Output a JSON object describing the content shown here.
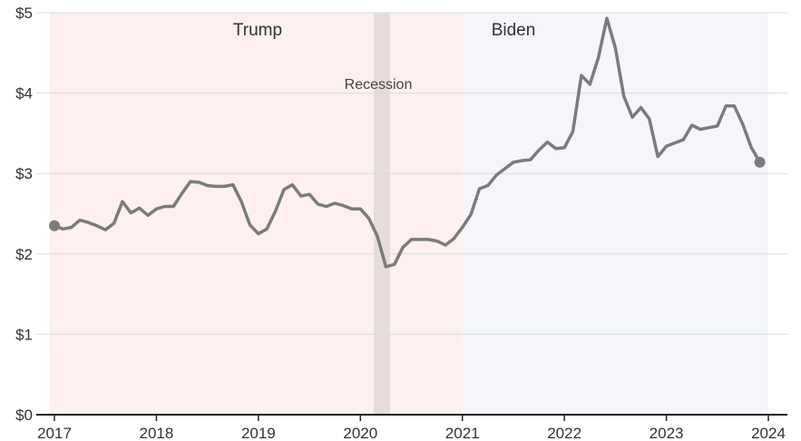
{
  "chart_data": {
    "type": "line",
    "title": "",
    "xlabel": "",
    "ylabel": "",
    "x_ticks": [
      "2017",
      "2018",
      "2019",
      "2020",
      "2021",
      "2022",
      "2023",
      "2024"
    ],
    "y_ticks": [
      "$0",
      "$1",
      "$2",
      "$3",
      "$4",
      "$5"
    ],
    "ylim": [
      0,
      5
    ],
    "xlim": [
      "2017-01",
      "2024-01"
    ],
    "grid": "horizontal",
    "periods": [
      {
        "label": "Trump",
        "start": "2017-01",
        "end": "2021-01",
        "color": "#fdf0ef"
      },
      {
        "label": "Recession",
        "start": "2020-02",
        "end": "2020-04",
        "color": "#e6dcdc"
      },
      {
        "label": "Biden",
        "start": "2021-01",
        "end": "2023-12",
        "color": "#f4f6fb"
      }
    ],
    "series": [
      {
        "color": "#7b7b7b",
        "x": [
          "2017-01",
          "2017-02",
          "2017-03",
          "2017-04",
          "2017-05",
          "2017-06",
          "2017-07",
          "2017-08",
          "2017-09",
          "2017-10",
          "2017-11",
          "2017-12",
          "2018-01",
          "2018-02",
          "2018-03",
          "2018-04",
          "2018-05",
          "2018-06",
          "2018-07",
          "2018-08",
          "2018-09",
          "2018-10",
          "2018-11",
          "2018-12",
          "2019-01",
          "2019-02",
          "2019-03",
          "2019-04",
          "2019-05",
          "2019-06",
          "2019-07",
          "2019-08",
          "2019-09",
          "2019-10",
          "2019-11",
          "2019-12",
          "2020-01",
          "2020-02",
          "2020-03",
          "2020-04",
          "2020-05",
          "2020-06",
          "2020-07",
          "2020-08",
          "2020-09",
          "2020-10",
          "2020-11",
          "2020-12",
          "2021-01",
          "2021-02",
          "2021-03",
          "2021-04",
          "2021-05",
          "2021-06",
          "2021-07",
          "2021-08",
          "2021-09",
          "2021-10",
          "2021-11",
          "2021-12",
          "2022-01",
          "2022-02",
          "2022-03",
          "2022-04",
          "2022-05",
          "2022-06",
          "2022-07",
          "2022-08",
          "2022-09",
          "2022-10",
          "2022-11",
          "2022-12",
          "2023-01",
          "2023-02",
          "2023-03",
          "2023-04",
          "2023-05",
          "2023-06",
          "2023-07",
          "2023-08",
          "2023-09",
          "2023-10",
          "2023-11",
          "2023-12"
        ],
        "values": [
          2.35,
          2.31,
          2.33,
          2.42,
          2.39,
          2.35,
          2.3,
          2.38,
          2.65,
          2.51,
          2.57,
          2.48,
          2.56,
          2.59,
          2.59,
          2.75,
          2.9,
          2.89,
          2.85,
          2.84,
          2.84,
          2.86,
          2.65,
          2.36,
          2.25,
          2.31,
          2.53,
          2.8,
          2.86,
          2.72,
          2.74,
          2.62,
          2.59,
          2.63,
          2.6,
          2.56,
          2.56,
          2.44,
          2.22,
          1.84,
          1.87,
          2.08,
          2.18,
          2.18,
          2.18,
          2.16,
          2.11,
          2.19,
          2.33,
          2.49,
          2.81,
          2.85,
          2.98,
          3.06,
          3.14,
          3.16,
          3.17,
          3.29,
          3.39,
          3.31,
          3.32,
          3.52,
          4.22,
          4.11,
          4.44,
          4.93,
          4.56,
          3.96,
          3.7,
          3.82,
          3.68,
          3.21,
          3.34,
          3.38,
          3.42,
          3.6,
          3.55,
          3.57,
          3.59,
          3.84,
          3.84,
          3.61,
          3.32,
          3.14
        ]
      }
    ]
  }
}
